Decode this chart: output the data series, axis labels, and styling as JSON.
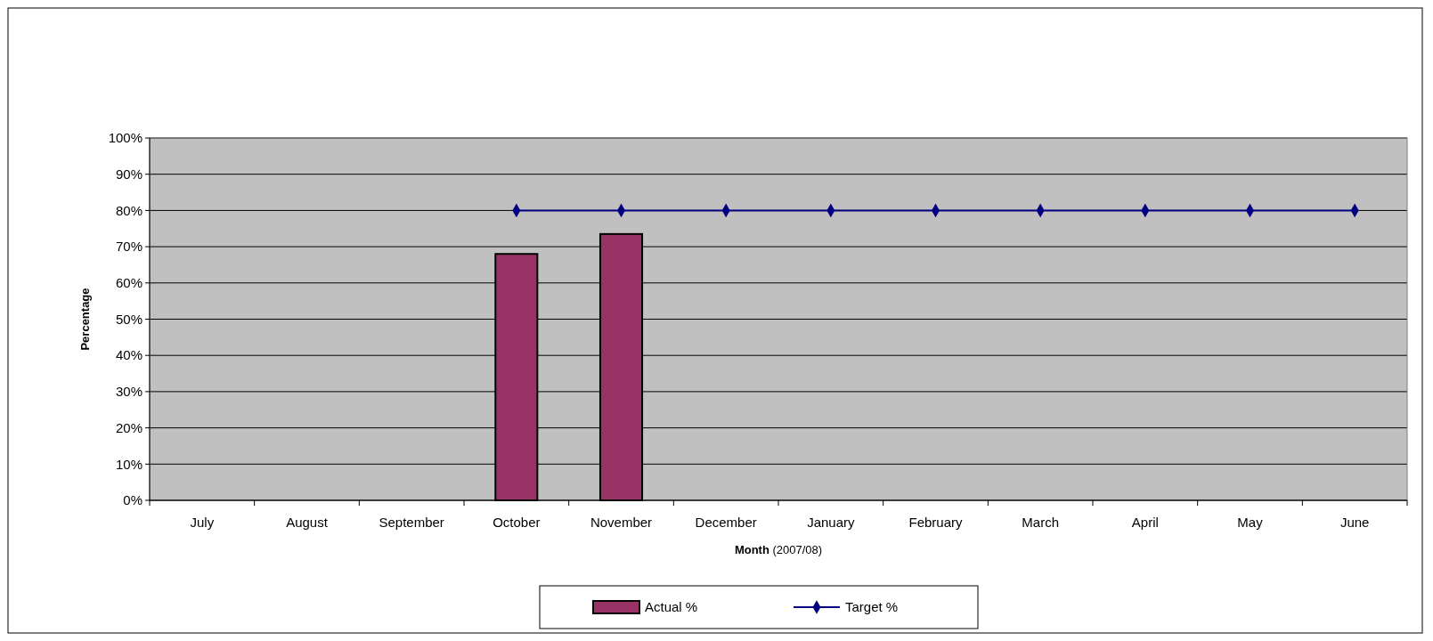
{
  "chart_data": {
    "type": "bar",
    "xlabel": "Month (2007/08)",
    "ylabel": "Percentage",
    "categories": [
      "July",
      "August",
      "September",
      "October",
      "November",
      "December",
      "January",
      "February",
      "March",
      "April",
      "May",
      "June"
    ],
    "series": [
      {
        "name": "Actual %",
        "color": "#993366",
        "values": [
          null,
          null,
          null,
          68,
          73.5,
          null,
          null,
          null,
          null,
          null,
          null,
          null
        ]
      },
      {
        "name": "Target %",
        "type": "line",
        "color": "#000080",
        "marker": "diamond",
        "values": [
          null,
          null,
          null,
          80,
          80,
          80,
          80,
          80,
          80,
          80,
          80,
          80
        ]
      }
    ],
    "ylim": [
      0,
      100
    ],
    "yticks": [
      {
        "value": 0,
        "label": "0%"
      },
      {
        "value": 10,
        "label": "10%"
      },
      {
        "value": 20,
        "label": "20%"
      },
      {
        "value": 30,
        "label": "30%"
      },
      {
        "value": 40,
        "label": "40%"
      },
      {
        "value": 50,
        "label": "50%"
      },
      {
        "value": 60,
        "label": "60%"
      },
      {
        "value": 70,
        "label": "70%"
      },
      {
        "value": 80,
        "label": "80%"
      },
      {
        "value": 90,
        "label": "90%"
      },
      {
        "value": 100,
        "label": "100%"
      }
    ],
    "grid": "y",
    "legend": "bottom"
  }
}
